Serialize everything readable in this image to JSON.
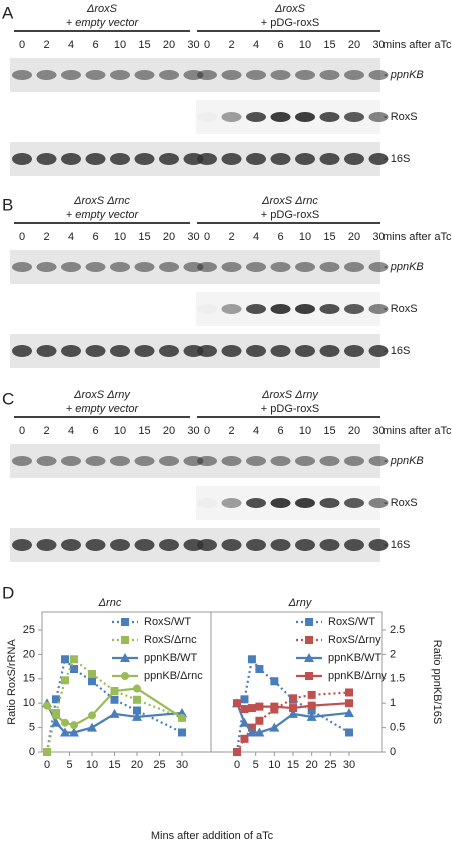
{
  "blots": [
    {
      "label": "A",
      "lane_unit": "mins after aTc",
      "bands": [
        "- ppnKB",
        "- RoxS",
        "- 16S"
      ],
      "groups": [
        {
          "strain": "ΔroxS",
          "construct": "+ empty vector",
          "lanes": [
            0,
            2,
            4,
            6,
            10,
            15,
            20,
            30
          ]
        },
        {
          "strain": "ΔroxS",
          "construct": "+ pDG-roxS",
          "lanes": [
            0,
            2,
            4,
            6,
            10,
            15,
            20,
            30
          ]
        }
      ]
    },
    {
      "label": "B",
      "lane_unit": "mins after aTc",
      "bands": [
        "- ppnKB",
        "- RoxS",
        "- 16S"
      ],
      "groups": [
        {
          "strain": "ΔroxS Δrnc",
          "construct": "+ empty vector",
          "lanes": [
            0,
            2,
            4,
            6,
            10,
            15,
            20,
            30
          ]
        },
        {
          "strain": "ΔroxS Δrnc",
          "construct": "+ pDG-roxS",
          "lanes": [
            0,
            2,
            4,
            6,
            10,
            15,
            20,
            30
          ]
        }
      ]
    },
    {
      "label": "C",
      "lane_unit": "mins after aTc",
      "bands": [
        "- ppnKB",
        "- RoxS",
        "- 16S"
      ],
      "groups": [
        {
          "strain": "ΔroxS Δrny",
          "construct": "+ empty vector",
          "lanes": [
            0,
            2,
            4,
            6,
            10,
            15,
            20,
            30
          ]
        },
        {
          "strain": "ΔroxS Δrny",
          "construct": "+ pDG-roxS",
          "lanes": [
            0,
            2,
            4,
            6,
            10,
            15,
            20,
            30
          ]
        }
      ]
    }
  ],
  "chart_data": {
    "type": "line",
    "label": "D",
    "xlabel": "Mins after addition of aTc",
    "ylabel": "Ratio RoxS/rRNA",
    "y2label": "Ratio ppnKB/16S",
    "x": [
      0,
      2,
      4,
      6,
      10,
      15,
      20,
      30
    ],
    "xlim": [
      0,
      30
    ],
    "xticks": [
      0,
      5,
      10,
      15,
      20,
      25,
      30
    ],
    "ylim": [
      0,
      25
    ],
    "yticks": [
      0,
      5,
      10,
      15,
      20,
      25
    ],
    "y2lim": [
      0,
      2.5
    ],
    "y2ticks": [
      0,
      0.5,
      1,
      1.5,
      2,
      2.5
    ],
    "subplots": [
      {
        "title": "Δrnc",
        "series": [
          {
            "name": "RoxS/WT",
            "color": "#4a7ebb",
            "line": "dotted",
            "marker": "square",
            "values": [
              0,
              10.8,
              19,
              17,
              14.5,
              10.7,
              8.5,
              4
            ]
          },
          {
            "name": "RoxS/Δrnc",
            "color": "#9bbb59",
            "line": "dotted",
            "marker": "square",
            "values": [
              0,
              8,
              14.7,
              19,
              16,
              12.5,
              10.7,
              7
            ]
          },
          {
            "name": "ppnKB/WT",
            "color": "#4a7ebb",
            "line": "solid",
            "marker": "triangle",
            "axis": "y2",
            "values": [
              1.0,
              0.6,
              0.4,
              0.4,
              0.5,
              0.78,
              0.72,
              0.8
            ]
          },
          {
            "name": "ppnKB/Δrnc",
            "color": "#9bbb59",
            "line": "solid",
            "marker": "circle",
            "axis": "y2",
            "values": [
              0.95,
              0.75,
              0.6,
              0.55,
              0.75,
              1.25,
              1.3,
              0.7
            ]
          }
        ]
      },
      {
        "title": "Δrny",
        "series": [
          {
            "name": "RoxS/WT",
            "color": "#4a7ebb",
            "line": "dotted",
            "marker": "square",
            "values": [
              0,
              10.8,
              19,
              17,
              14.5,
              10.7,
              8.5,
              4
            ]
          },
          {
            "name": "RoxS/Δrny",
            "color": "#c0504d",
            "line": "dotted",
            "marker": "square",
            "values": [
              0,
              2.7,
              5,
              6.4,
              8.7,
              11,
              11.7,
              12.2
            ]
          },
          {
            "name": "ppnKB/WT",
            "color": "#4a7ebb",
            "line": "solid",
            "marker": "triangle",
            "axis": "y2",
            "values": [
              1.0,
              0.6,
              0.4,
              0.4,
              0.5,
              0.78,
              0.72,
              0.8
            ]
          },
          {
            "name": "ppnKB/Δrny",
            "color": "#c0504d",
            "line": "solid",
            "marker": "square",
            "axis": "y2",
            "values": [
              1.0,
              0.88,
              0.9,
              0.93,
              0.93,
              0.9,
              0.95,
              1.0
            ]
          }
        ]
      }
    ]
  }
}
